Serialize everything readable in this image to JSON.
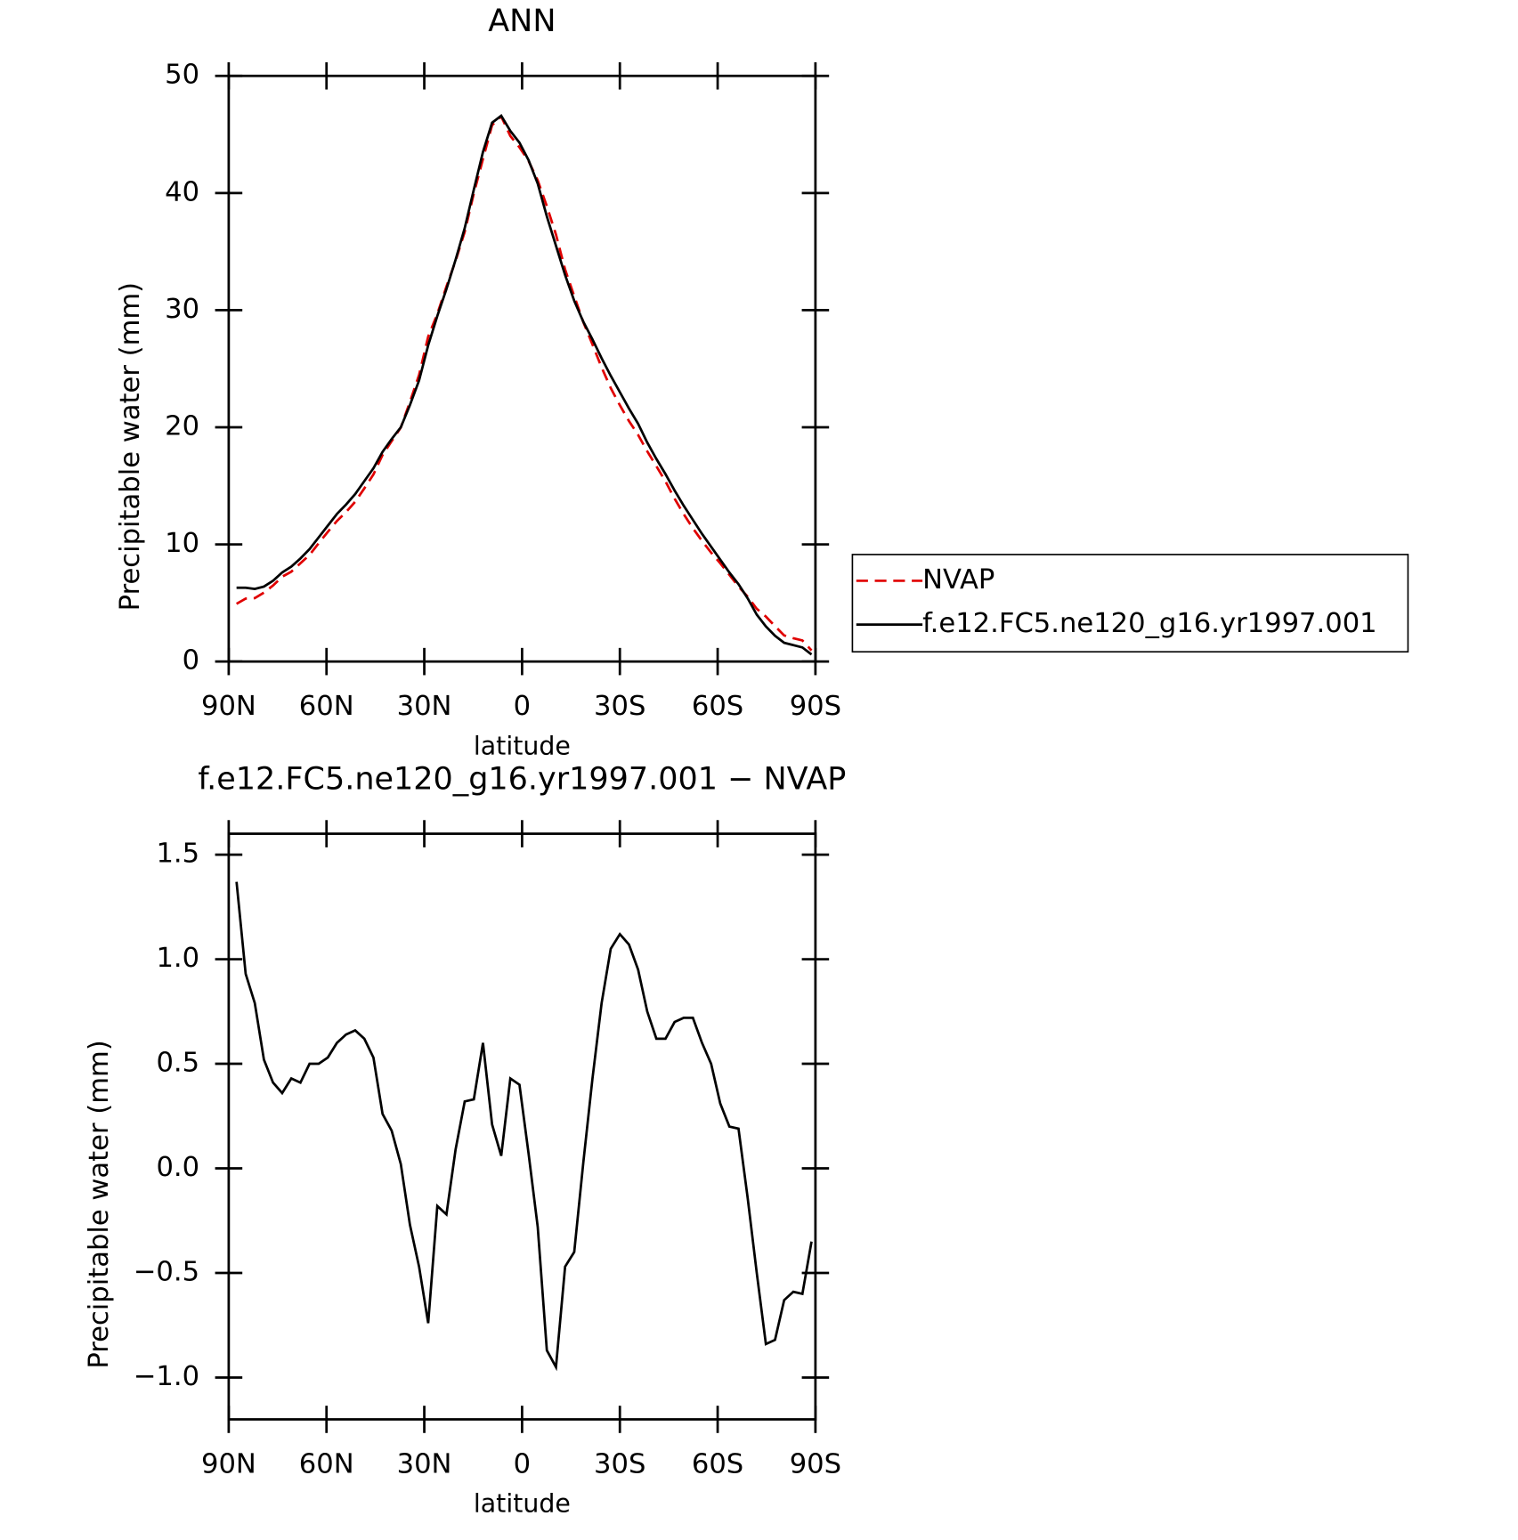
{
  "chart_data": [
    {
      "type": "line",
      "title": "ANN",
      "xlabel": "latitude",
      "ylabel": "Precipitable water (mm)",
      "x": [
        87.6,
        84.8,
        82.0,
        79.2,
        76.4,
        73.6,
        70.8,
        68.0,
        65.2,
        62.4,
        59.6,
        56.8,
        54.0,
        51.2,
        48.4,
        45.6,
        42.8,
        40.0,
        37.2,
        34.4,
        31.6,
        28.8,
        26.0,
        23.2,
        20.4,
        17.6,
        14.8,
        12.0,
        9.2,
        6.4,
        3.6,
        0.8,
        -2.0,
        -4.8,
        -7.6,
        -10.4,
        -13.2,
        -16.0,
        -18.8,
        -21.6,
        -24.4,
        -27.2,
        -30.0,
        -32.8,
        -35.6,
        -38.4,
        -41.2,
        -44.0,
        -46.8,
        -49.6,
        -52.4,
        -55.2,
        -58.0,
        -60.8,
        -63.6,
        -66.4,
        -69.2,
        -72.0,
        -74.8,
        -77.6,
        -80.4,
        -83.2,
        -86.0,
        -88.8
      ],
      "series": [
        {
          "name": "NVAP",
          "color": "#e00000",
          "dash": "dashed",
          "values": [
            4.93,
            5.37,
            5.41,
            5.88,
            6.49,
            7.24,
            7.67,
            8.39,
            9.1,
            10.1,
            11.07,
            12.0,
            12.76,
            13.64,
            14.78,
            15.97,
            17.64,
            18.82,
            19.98,
            22.17,
            24.47,
            27.74,
            29.68,
            32.02,
            34.21,
            36.68,
            39.97,
            42.9,
            45.79,
            46.54,
            44.87,
            43.9,
            42.73,
            41.08,
            38.87,
            36.45,
            33.47,
            31.2,
            28.97,
            27.07,
            25.11,
            23.35,
            21.88,
            20.53,
            19.35,
            17.95,
            16.68,
            15.38,
            13.9,
            12.58,
            11.38,
            10.3,
            9.3,
            8.39,
            7.4,
            6.41,
            5.54,
            4.5,
            3.84,
            3.02,
            2.23,
            1.99,
            1.8,
            0.95
          ]
        },
        {
          "name": "f.e12.FC5.ne120_g16.yr1997.001",
          "color": "#000000",
          "dash": "solid",
          "values": [
            6.3,
            6.3,
            6.2,
            6.4,
            6.9,
            7.6,
            8.1,
            8.8,
            9.6,
            10.6,
            11.6,
            12.6,
            13.4,
            14.3,
            15.4,
            16.5,
            17.9,
            19.0,
            20.0,
            21.9,
            24.0,
            27.0,
            29.5,
            31.8,
            34.3,
            37.0,
            40.3,
            43.5,
            46.0,
            46.6,
            45.3,
            44.3,
            42.8,
            40.8,
            38.0,
            35.5,
            33.0,
            30.8,
            29.0,
            27.5,
            25.9,
            24.4,
            23.0,
            21.6,
            20.3,
            18.7,
            17.3,
            16.0,
            14.6,
            13.3,
            12.1,
            10.9,
            9.8,
            8.7,
            7.6,
            6.6,
            5.4,
            4.0,
            3.0,
            2.2,
            1.6,
            1.4,
            1.2,
            0.6
          ]
        }
      ],
      "xlim": [
        90,
        -90
      ],
      "xticks": [
        {
          "value": 90,
          "label": "90N"
        },
        {
          "value": 60,
          "label": "60N"
        },
        {
          "value": 30,
          "label": "30N"
        },
        0,
        {
          "value": -30,
          "label": "30S"
        },
        {
          "value": -60,
          "label": "60S"
        },
        {
          "value": -90,
          "label": "90S"
        }
      ],
      "ylim": [
        0,
        50
      ],
      "yticks": [
        0,
        10,
        20,
        30,
        40,
        50
      ],
      "legend": "outside-right"
    },
    {
      "type": "line",
      "title": "f.e12.FC5.ne120_g16.yr1997.001 − NVAP",
      "xlabel": "latitude",
      "ylabel": "Precipitable water (mm)",
      "x": [
        87.6,
        84.8,
        82.0,
        79.2,
        76.4,
        73.6,
        70.8,
        68.0,
        65.2,
        62.4,
        59.6,
        56.8,
        54.0,
        51.2,
        48.4,
        45.6,
        42.8,
        40.0,
        37.2,
        34.4,
        31.6,
        28.8,
        26.0,
        23.2,
        20.4,
        17.6,
        14.8,
        12.0,
        9.2,
        6.4,
        3.6,
        0.8,
        -2.0,
        -4.8,
        -7.6,
        -10.4,
        -13.2,
        -16.0,
        -18.8,
        -21.6,
        -24.4,
        -27.2,
        -30.0,
        -32.8,
        -35.6,
        -38.4,
        -41.2,
        -44.0,
        -46.8,
        -49.6,
        -52.4,
        -55.2,
        -58.0,
        -60.8,
        -63.6,
        -66.4,
        -69.2,
        -72.0,
        -74.8,
        -77.6,
        -80.4,
        -83.2,
        -86.0,
        -88.8
      ],
      "color": "#000000",
      "values": [
        1.37,
        0.93,
        0.79,
        0.52,
        0.41,
        0.36,
        0.43,
        0.41,
        0.5,
        0.5,
        0.53,
        0.6,
        0.64,
        0.66,
        0.62,
        0.53,
        0.26,
        0.18,
        0.02,
        -0.27,
        -0.47,
        -0.74,
        -0.18,
        -0.22,
        0.09,
        0.32,
        0.33,
        0.6,
        0.21,
        0.06,
        0.43,
        0.4,
        0.07,
        -0.28,
        -0.87,
        -0.95,
        -0.47,
        -0.4,
        0.03,
        0.43,
        0.79,
        1.05,
        1.12,
        1.07,
        0.95,
        0.75,
        0.62,
        0.62,
        0.7,
        0.72,
        0.72,
        0.6,
        0.5,
        0.31,
        0.2,
        0.19,
        -0.14,
        -0.5,
        -0.84,
        -0.82,
        -0.63,
        -0.59,
        -0.6,
        -0.35
      ],
      "xlim": [
        90,
        -90
      ],
      "xticks": [
        {
          "value": 90,
          "label": "90N"
        },
        {
          "value": 60,
          "label": "60N"
        },
        {
          "value": 30,
          "label": "30N"
        },
        0,
        {
          "value": -30,
          "label": "30S"
        },
        {
          "value": -60,
          "label": "60S"
        },
        {
          "value": -90,
          "label": "90S"
        }
      ],
      "ylim": [
        -1.2,
        1.6
      ],
      "yticks": [
        {
          "value": -1.0,
          "label": "−1.0"
        },
        {
          "value": -0.5,
          "label": "−0.5"
        },
        {
          "value": 0,
          "label": "0.0"
        },
        0.5,
        {
          "value": 1.0,
          "label": "1.0"
        },
        1.5
      ]
    }
  ]
}
